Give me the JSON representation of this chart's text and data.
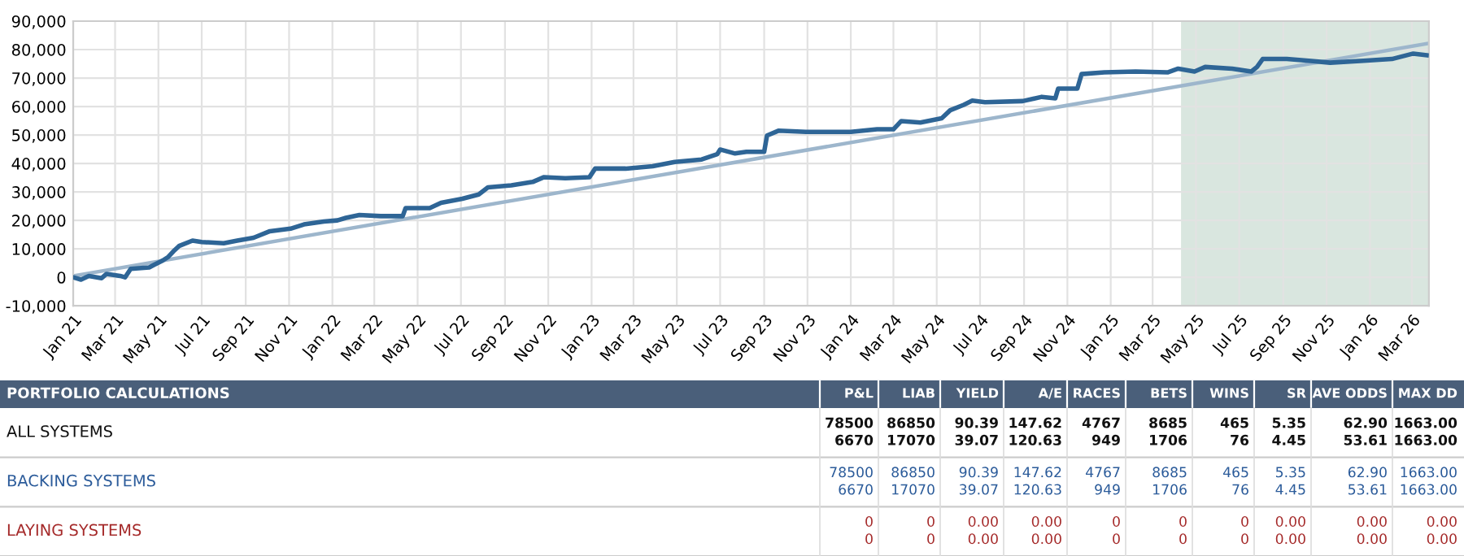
{
  "chart_data": [
    {
      "type": "line",
      "x": [
        "2021-01-01",
        "2021-01-12",
        "2021-01-23",
        "2021-02-10",
        "2021-02-17",
        "2021-03-08",
        "2021-03-15",
        "2021-03-23",
        "2021-04-18",
        "2021-04-25",
        "2021-05-07",
        "2021-05-15",
        "2021-05-22",
        "2021-05-30",
        "2021-06-18",
        "2021-07-01",
        "2021-08-01",
        "2021-08-20",
        "2021-09-12",
        "2021-10-05",
        "2021-11-03",
        "2021-11-22",
        "2021-12-20",
        "2022-01-08",
        "2022-01-20",
        "2022-02-08",
        "2022-03-10",
        "2022-04-10",
        "2022-04-14",
        "2022-05-18",
        "2022-06-03",
        "2022-07-03",
        "2022-07-26",
        "2022-08-08",
        "2022-09-10",
        "2022-10-10",
        "2022-10-26",
        "2022-11-25",
        "2022-12-29",
        "2023-01-06",
        "2023-02-18",
        "2023-03-28",
        "2023-04-28",
        "2023-06-05",
        "2023-06-27",
        "2023-07-01",
        "2023-07-22",
        "2023-08-07",
        "2023-09-01",
        "2023-09-05",
        "2023-09-21",
        "2023-10-30",
        "2024-01-01",
        "2024-02-07",
        "2024-03-01",
        "2024-03-12",
        "2024-04-08",
        "2024-05-08",
        "2024-05-20",
        "2024-06-08",
        "2024-06-20",
        "2024-07-08",
        "2024-08-30",
        "2024-09-26",
        "2024-10-15",
        "2024-10-19",
        "2024-11-15",
        "2024-11-21",
        "2024-12-23",
        "2025-02-05",
        "2025-03-22",
        "2025-04-06",
        "2025-04-29",
        "2025-05-14",
        "2025-06-21",
        "2025-07-18",
        "2025-07-26",
        "2025-08-03",
        "2025-09-06",
        "2025-10-07",
        "2025-11-06",
        "2025-12-23",
        "2026-02-01",
        "2026-03-03",
        "2026-03-22"
      ],
      "series": [
        {
          "type": "line",
          "color": "#2e6596",
          "values": [
            0,
            -800,
            500,
            -300,
            1200,
            500,
            0,
            3000,
            3500,
            4400,
            5900,
            7200,
            9100,
            11000,
            12900,
            12400,
            12000,
            12900,
            13900,
            16200,
            17100,
            18600,
            19600,
            20000,
            20900,
            21900,
            21500,
            21500,
            24300,
            24300,
            26200,
            27600,
            29100,
            31600,
            32300,
            33500,
            35200,
            34800,
            35200,
            38200,
            38200,
            39000,
            40500,
            41400,
            43300,
            44900,
            43500,
            44100,
            44100,
            49800,
            51500,
            51100,
            51100,
            52000,
            52000,
            54900,
            54400,
            55900,
            58700,
            60600,
            62100,
            61500,
            61900,
            63400,
            62900,
            66300,
            66300,
            71400,
            72000,
            72300,
            72000,
            73300,
            72300,
            73900,
            73300,
            72300,
            73900,
            76700,
            76700,
            76100,
            75400,
            76100,
            76700,
            78600,
            78000
          ]
        },
        {
          "type": "line",
          "color": "#9db6cc",
          "x": [
            "2021-01-01",
            "2026-03-25"
          ],
          "values": [
            500,
            82200
          ]
        }
      ],
      "xlim": [
        "2021-01-01",
        "2026-03-25"
      ],
      "xticks": [
        {
          "value": "2021-01",
          "label": "Jan 21"
        },
        {
          "value": "2021-03",
          "label": "Mar 21"
        },
        {
          "value": "2021-05",
          "label": "May 21"
        },
        {
          "value": "2021-07",
          "label": "Jul 21"
        },
        {
          "value": "2021-09",
          "label": "Sep 21"
        },
        {
          "value": "2021-11",
          "label": "Nov 21"
        },
        {
          "value": "2022-01",
          "label": "Jan 22"
        },
        {
          "value": "2022-03",
          "label": "Mar 22"
        },
        {
          "value": "2022-05",
          "label": "May 22"
        },
        {
          "value": "2022-07",
          "label": "Jul 22"
        },
        {
          "value": "2022-09",
          "label": "Sep 22"
        },
        {
          "value": "2022-11",
          "label": "Nov 22"
        },
        {
          "value": "2023-01",
          "label": "Jan 23"
        },
        {
          "value": "2023-03",
          "label": "Mar 23"
        },
        {
          "value": "2023-05",
          "label": "May 23"
        },
        {
          "value": "2023-07",
          "label": "Jul 23"
        },
        {
          "value": "2023-09",
          "label": "Sep 23"
        },
        {
          "value": "2023-11",
          "label": "Nov 23"
        },
        {
          "value": "2024-01",
          "label": "Jan 24"
        },
        {
          "value": "2024-03",
          "label": "Mar 24"
        },
        {
          "value": "2024-05",
          "label": "May 24"
        },
        {
          "value": "2024-07",
          "label": "Jul 24"
        },
        {
          "value": "2024-09",
          "label": "Sep 24"
        },
        {
          "value": "2024-11",
          "label": "Nov 24"
        },
        {
          "value": "2025-01",
          "label": "Jan 25"
        },
        {
          "value": "2025-03",
          "label": "Mar 25"
        },
        {
          "value": "2025-05",
          "label": "May 25"
        },
        {
          "value": "2025-07",
          "label": "Jul 25"
        },
        {
          "value": "2025-09",
          "label": "Sep 25"
        },
        {
          "value": "2025-11",
          "label": "Nov 25"
        },
        {
          "value": "2026-01",
          "label": "Jan 26"
        },
        {
          "value": "2026-03",
          "label": "Mar 26"
        }
      ],
      "ylim": [
        -10000,
        90000
      ],
      "yticks": [
        {
          "value": -10000,
          "label": "-10,000"
        },
        0,
        {
          "value": 10000,
          "label": "10,000"
        },
        {
          "value": 20000,
          "label": "20,000"
        },
        {
          "value": 30000,
          "label": "30,000"
        },
        {
          "value": 40000,
          "label": "40,000"
        },
        {
          "value": 50000,
          "label": "50,000"
        },
        {
          "value": 60000,
          "label": "60,000"
        },
        {
          "value": 70000,
          "label": "70,000"
        },
        {
          "value": 80000,
          "label": "80,000"
        },
        {
          "value": 90000,
          "label": "90,000"
        }
      ],
      "bands": [
        {
          "axis": "x",
          "from": "2025-04-10",
          "to": "2026-03-25",
          "color": "#d9e6df"
        }
      ],
      "grid": true,
      "legend": false,
      "marker": "none",
      "line_style": "solid"
    },
    {
      "type": "other",
      "title": "PORTFOLIO CALCULATIONS",
      "categories": [
        "P&L",
        "LIAB",
        "YIELD",
        "A/E",
        "RACES",
        "BETS",
        "WINS",
        "SR",
        "AVE ODDS",
        "MAX DD"
      ],
      "y_categories": [
        "ALL SYSTEMS",
        "BACKING SYSTEMS",
        "LAYING SYSTEMS"
      ],
      "cell_labels": [
        [
          "78500\n6670",
          "86850\n17070",
          "90.39\n39.07",
          "147.62\n120.63",
          "4767\n949",
          "8685\n1706",
          "465\n76",
          "5.35\n4.45",
          "62.90\n53.61",
          "1663.00\n1663.00"
        ],
        [
          "78500\n6670",
          "86850\n17070",
          "90.39\n39.07",
          "147.62\n120.63",
          "4767\n949",
          "8685\n1706",
          "465\n76",
          "5.35\n4.45",
          "62.90\n53.61",
          "1663.00\n1663.00"
        ],
        [
          "0\n0",
          "0\n0",
          "0.00\n0.00",
          "0.00\n0.00",
          "0\n0",
          "0\n0",
          "0\n0",
          "0.00\n0.00",
          "0.00\n0.00",
          "0.00\n0.00"
        ]
      ]
    }
  ]
}
